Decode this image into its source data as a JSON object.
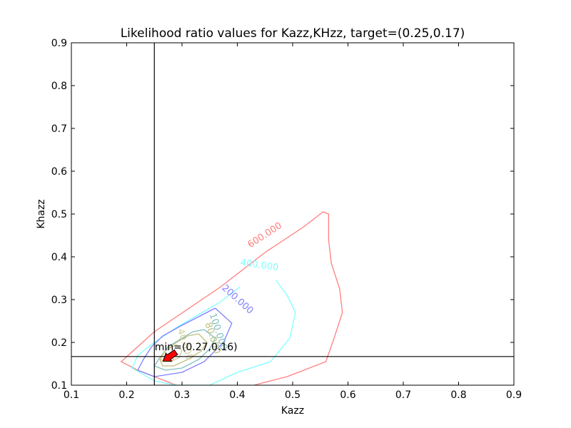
{
  "chart_data": {
    "type": "contour",
    "title": "Likelihood ratio values for Kazz,KHzz, target=(0.25,0.17)",
    "xlabel": "Kazz",
    "ylabel": "Khazz",
    "xlim": [
      0.1,
      0.9
    ],
    "ylim": [
      0.1,
      0.9
    ],
    "xticks": [
      "0.1",
      "0.2",
      "0.3",
      "0.4",
      "0.5",
      "0.6",
      "0.7",
      "0.8",
      "0.9"
    ],
    "yticks": [
      "0.1",
      "0.2",
      "0.3",
      "0.4",
      "0.5",
      "0.6",
      "0.7",
      "0.8",
      "0.9"
    ],
    "grid": false,
    "target": {
      "x": 0.25,
      "y": 0.167
    },
    "minimum": {
      "x": 0.27,
      "y": 0.16,
      "label": "min=(0.27,0.16)"
    },
    "contours": [
      {
        "level": 600,
        "label": "600.000",
        "color": "#ff7f7f",
        "points": [
          [
            0.43,
            0.1
          ],
          [
            0.49,
            0.12
          ],
          [
            0.56,
            0.155
          ],
          [
            0.575,
            0.21
          ],
          [
            0.59,
            0.27
          ],
          [
            0.585,
            0.325
          ],
          [
            0.57,
            0.385
          ],
          [
            0.565,
            0.44
          ],
          [
            0.565,
            0.5
          ],
          [
            0.555,
            0.505
          ],
          [
            0.52,
            0.47
          ],
          [
            0.45,
            0.41
          ],
          [
            0.41,
            0.37
          ],
          [
            0.37,
            0.33
          ],
          [
            0.33,
            0.295
          ],
          [
            0.29,
            0.26
          ],
          [
            0.25,
            0.225
          ],
          [
            0.22,
            0.19
          ],
          [
            0.19,
            0.155
          ],
          [
            0.22,
            0.135
          ],
          [
            0.25,
            0.12
          ],
          [
            0.29,
            0.1
          ]
        ]
      },
      {
        "level": 400,
        "label": "400.000",
        "color": "#7fffff",
        "points": [
          [
            0.47,
            0.345
          ],
          [
            0.49,
            0.31
          ],
          [
            0.505,
            0.27
          ],
          [
            0.495,
            0.21
          ],
          [
            0.46,
            0.155
          ],
          [
            0.4,
            0.13
          ],
          [
            0.35,
            0.1
          ],
          [
            0.29,
            0.1
          ],
          [
            0.25,
            0.11
          ],
          [
            0.21,
            0.14
          ],
          [
            0.22,
            0.17
          ],
          [
            0.25,
            0.2
          ],
          [
            0.29,
            0.235
          ],
          [
            0.33,
            0.265
          ],
          [
            0.37,
            0.295
          ],
          [
            0.405,
            0.33
          ]
        ]
      },
      {
        "level": 200,
        "label": "200.000",
        "color": "#7f7fff",
        "points": [
          [
            0.36,
            0.28
          ],
          [
            0.39,
            0.245
          ],
          [
            0.375,
            0.2
          ],
          [
            0.34,
            0.155
          ],
          [
            0.3,
            0.13
          ],
          [
            0.25,
            0.12
          ],
          [
            0.22,
            0.135
          ],
          [
            0.23,
            0.16
          ],
          [
            0.245,
            0.19
          ],
          [
            0.265,
            0.215
          ],
          [
            0.3,
            0.24
          ],
          [
            0.33,
            0.26
          ],
          [
            0.36,
            0.28
          ]
        ]
      },
      {
        "level": 100,
        "label": "100.000",
        "color": "#7fbfbf",
        "points": [
          [
            0.34,
            0.23
          ],
          [
            0.36,
            0.21
          ],
          [
            0.35,
            0.185
          ],
          [
            0.33,
            0.16
          ],
          [
            0.3,
            0.14
          ],
          [
            0.27,
            0.135
          ],
          [
            0.25,
            0.145
          ],
          [
            0.26,
            0.165
          ],
          [
            0.275,
            0.19
          ],
          [
            0.3,
            0.21
          ],
          [
            0.32,
            0.225
          ],
          [
            0.34,
            0.23
          ]
        ]
      },
      {
        "level": 80,
        "label": "80.000",
        "color": "#bfbf7f",
        "points": [
          [
            0.33,
            0.22
          ],
          [
            0.345,
            0.2
          ],
          [
            0.335,
            0.18
          ],
          [
            0.31,
            0.16
          ],
          [
            0.285,
            0.145
          ],
          [
            0.265,
            0.145
          ],
          [
            0.26,
            0.16
          ],
          [
            0.27,
            0.18
          ],
          [
            0.29,
            0.2
          ],
          [
            0.31,
            0.215
          ],
          [
            0.33,
            0.22
          ]
        ]
      },
      {
        "level": 40,
        "label": "40.000",
        "color": "#cfcf9f",
        "points": [
          [
            0.29,
            0.195
          ],
          [
            0.3,
            0.18
          ],
          [
            0.295,
            0.165
          ],
          [
            0.28,
            0.155
          ],
          [
            0.265,
            0.155
          ],
          [
            0.26,
            0.165
          ],
          [
            0.27,
            0.18
          ],
          [
            0.29,
            0.195
          ]
        ]
      },
      {
        "level": 20,
        "label": "",
        "color": "#ffbf7f",
        "points": [
          [
            0.28,
            0.17
          ],
          [
            0.285,
            0.16
          ],
          [
            0.275,
            0.155
          ],
          [
            0.265,
            0.158
          ],
          [
            0.27,
            0.168
          ],
          [
            0.28,
            0.17
          ]
        ]
      }
    ]
  }
}
